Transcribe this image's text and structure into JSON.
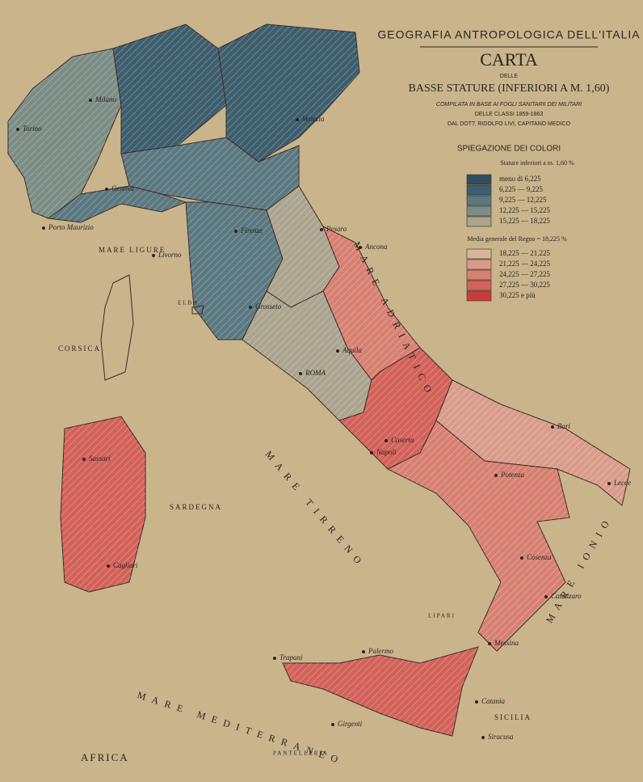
{
  "header": {
    "series": "GEOGRAFIA ANTROPOLOGICA DELL'ITALIA",
    "title": "CARTA",
    "delle": "DELLE",
    "subtitle": "BASSE STATURE (INFERIORI A M. 1,60)",
    "compiled": "COMPILATA IN BASE AI FOGLI SANITARII DEI MILITARI",
    "classes": "DELLE CLASSI 1859-1863",
    "author": "DAL DOTT. RIDOLFO LIVI, CAPITANO MEDICO"
  },
  "legend": {
    "title": "SPIEGAZIONE DEI COLORI",
    "subtitle": "Stature inferiori a m. 1,60 %",
    "average": "Media generale del Regno = 18,225 %",
    "items": [
      {
        "label": "meno di 6,225",
        "color": "#2f4d60"
      },
      {
        "label": "6,225 — 9,225",
        "color": "#3e5e6e"
      },
      {
        "label": "9,225 — 12,225",
        "color": "#5b7880"
      },
      {
        "label": "12,225 — 15,225",
        "color": "#7c8d86"
      },
      {
        "label": "15,225 — 18,225",
        "color": "#aba48f"
      },
      {
        "label": "18,225 — 21,225",
        "color": "#d8b59b"
      },
      {
        "label": "21,225 — 24,225",
        "color": "#d99c8a"
      },
      {
        "label": "24,225 — 27,225",
        "color": "#d78173"
      },
      {
        "label": "27,225 — 30,225",
        "color": "#d3625a"
      },
      {
        "label": "30,225 e più",
        "color": "#cb3c3c"
      }
    ]
  },
  "places": [
    "Torino",
    "Milano",
    "Venezia",
    "Genova",
    "Porto Maurizio",
    "Firenze",
    "Livorno",
    "Pesaro",
    "Ancona",
    "Grosseto",
    "Aquila",
    "ROMA",
    "Bari",
    "Napoli",
    "Caserta",
    "Potenza",
    "Cosenza",
    "Catanzaro",
    "Lecce",
    "Palermo",
    "Trapani",
    "Girgenti",
    "Messina",
    "Catania",
    "Siracusa",
    "Sassari",
    "Cagliari"
  ],
  "seas": [
    "MARE LIGURE",
    "MARE ADRIATICO",
    "MARE TIRRENO",
    "MARE IONIO",
    "MARE MEDITERRANEO",
    "AFRICA",
    "CORSICA",
    "SARDEGNA",
    "SICILIA",
    "ELBA",
    "LIPARI",
    "PANTELLERIA"
  ]
}
